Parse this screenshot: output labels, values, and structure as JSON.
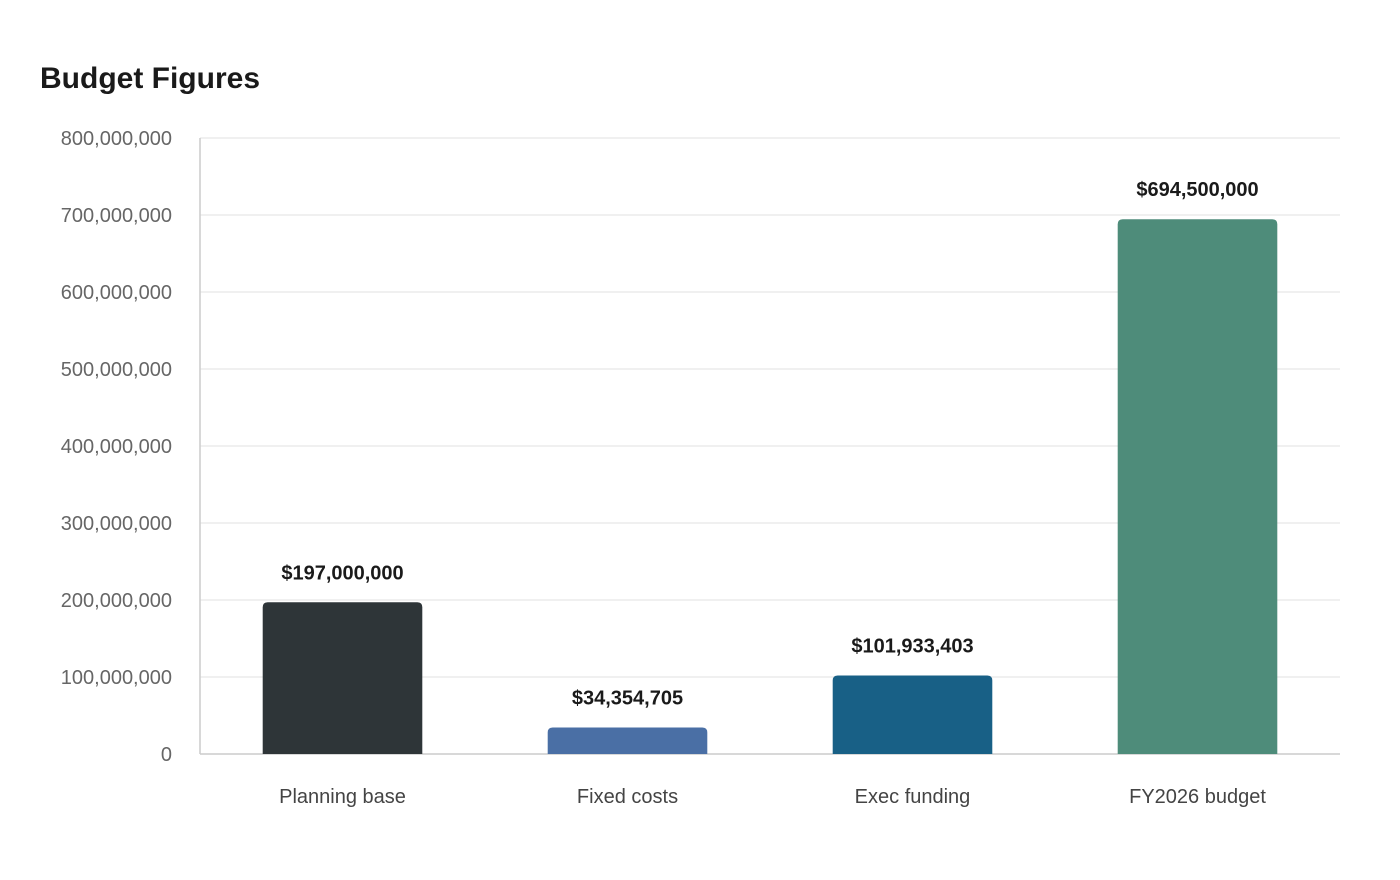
{
  "chart_data": {
    "type": "bar",
    "title": "Budget Figures",
    "xlabel": "",
    "ylabel": "",
    "ylim": [
      0,
      800000000
    ],
    "yticks": [
      0,
      100000000,
      200000000,
      300000000,
      400000000,
      500000000,
      600000000,
      700000000,
      800000000
    ],
    "ytick_labels": [
      "0",
      "100,000,000",
      "200,000,000",
      "300,000,000",
      "400,000,000",
      "500,000,000",
      "600,000,000",
      "700,000,000",
      "800,000,000"
    ],
    "grid": true,
    "legend": "none",
    "categories": [
      "Planning base",
      "Fixed costs",
      "Exec funding",
      "FY2026 budget"
    ],
    "values": [
      197000000,
      34354705,
      101933403,
      694500000
    ],
    "data_labels": [
      "$197,000,000",
      "$34,354,705",
      "$101,933,403",
      "$694,500,000"
    ],
    "colors": [
      "#2e3538",
      "#4a6fa5",
      "#186086",
      "#4e8c7a"
    ]
  }
}
